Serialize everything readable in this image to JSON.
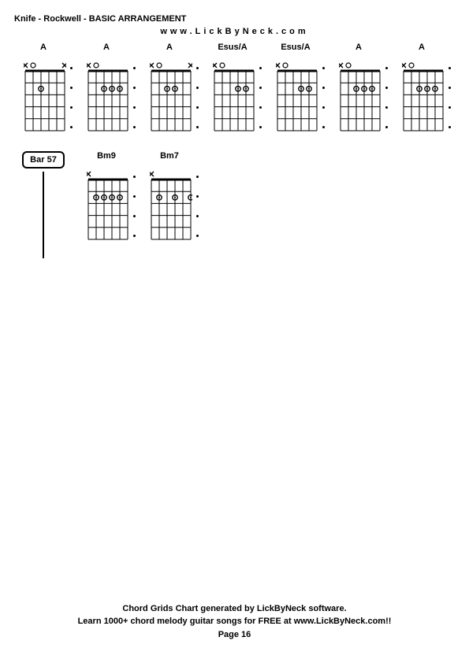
{
  "title": "Knife - Rockwell - BASIC ARRANGEMENT",
  "subtitle": "www.LickByNeck.com",
  "footer_line1": "Chord Grids Chart generated by LickByNeck software.",
  "footer_line2": "Learn 1000+ chord melody guitar songs for FREE at www.LickByNeck.com!!",
  "footer_line3": "Page 16",
  "bar_label": "Bar 57",
  "diagram": {
    "strings": 6,
    "frets": 5,
    "width": 50,
    "height": 90,
    "head_height": 14,
    "line_color": "#000000",
    "dot_radius": 3.2,
    "x_mark_size": 6,
    "open_radius": 3
  },
  "row1": [
    {
      "name": "A",
      "top": [
        "x",
        "o",
        "",
        "",
        "",
        "x"
      ],
      "dots": [
        {
          "s": 2,
          "f": 2
        }
      ],
      "side_dots": 4
    },
    {
      "name": "A",
      "top": [
        "x",
        "o",
        "",
        "",
        "",
        ""
      ],
      "dots": [
        {
          "s": 2,
          "f": 2
        },
        {
          "s": 3,
          "f": 2
        },
        {
          "s": 4,
          "f": 2
        }
      ],
      "side_dots": 4
    },
    {
      "name": "A",
      "top": [
        "x",
        "o",
        "",
        "",
        "",
        "x"
      ],
      "dots": [
        {
          "s": 2,
          "f": 2
        },
        {
          "s": 3,
          "f": 2
        }
      ],
      "side_dots": 4
    },
    {
      "name": "Esus/A",
      "top": [
        "x",
        "o",
        "",
        "",
        "",
        ""
      ],
      "dots": [
        {
          "s": 3,
          "f": 2
        },
        {
          "s": 4,
          "f": 2
        }
      ],
      "side_dots": 4
    },
    {
      "name": "Esus/A",
      "top": [
        "x",
        "o",
        "",
        "",
        "",
        ""
      ],
      "dots": [
        {
          "s": 3,
          "f": 2
        },
        {
          "s": 4,
          "f": 2
        }
      ],
      "side_dots": 4
    },
    {
      "name": "A",
      "top": [
        "x",
        "o",
        "",
        "",
        "",
        ""
      ],
      "dots": [
        {
          "s": 2,
          "f": 2
        },
        {
          "s": 3,
          "f": 2
        },
        {
          "s": 4,
          "f": 2
        }
      ],
      "side_dots": 4
    },
    {
      "name": "A",
      "top": [
        "x",
        "o",
        "",
        "",
        "",
        ""
      ],
      "dots": [
        {
          "s": 2,
          "f": 2
        },
        {
          "s": 3,
          "f": 2
        },
        {
          "s": 4,
          "f": 2
        }
      ],
      "side_dots": 4
    }
  ],
  "row2": [
    {
      "bar": true
    },
    {
      "name": "Bm9",
      "top": [
        "x",
        "",
        "",
        "",
        "",
        ""
      ],
      "dots": [
        {
          "s": 1,
          "f": 2
        },
        {
          "s": 2,
          "f": 2
        },
        {
          "s": 3,
          "f": 2
        },
        {
          "s": 4,
          "f": 2
        }
      ],
      "side_dots": 4
    },
    {
      "name": "Bm7",
      "top": [
        "x",
        "",
        "",
        "",
        "",
        ""
      ],
      "dots": [
        {
          "s": 1,
          "f": 2
        },
        {
          "s": 3,
          "f": 2
        },
        {
          "s": 5,
          "f": 2
        }
      ],
      "side_dots": 4
    }
  ]
}
